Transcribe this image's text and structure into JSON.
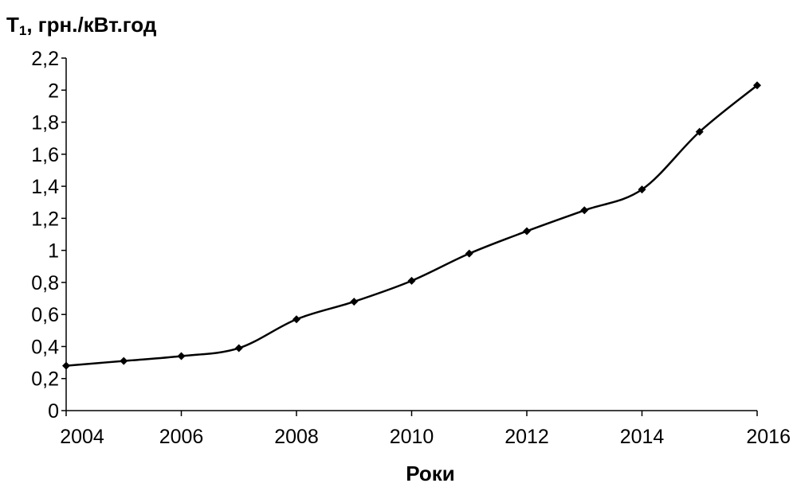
{
  "chart_data": {
    "type": "line",
    "ylabel_main": "T",
    "ylabel_sub": "1",
    "ylabel_rest": ", грн./кВт.год",
    "xlabel": "Роки",
    "xlim": [
      2004,
      2016
    ],
    "ylim": [
      0,
      2.2
    ],
    "x_ticks": [
      "2004",
      "2006",
      "2008",
      "2010",
      "2012",
      "2014",
      "2016"
    ],
    "y_ticks": [
      "0",
      "0,2",
      "0,4",
      "0,6",
      "0,8",
      "1",
      "1,2",
      "1,4",
      "1,6",
      "1,8",
      "2",
      "2,2"
    ],
    "series": [
      {
        "x": [
          2004,
          2005,
          2006,
          2007,
          2008,
          2009,
          2010,
          2011,
          2012,
          2013,
          2014,
          2015,
          2016
        ],
        "y": [
          0.28,
          0.31,
          0.34,
          0.39,
          0.57,
          0.68,
          0.81,
          0.98,
          1.12,
          1.25,
          1.38,
          1.74,
          2.03
        ],
        "marker": "diamond",
        "color": "#000000"
      }
    ],
    "grid": false
  }
}
